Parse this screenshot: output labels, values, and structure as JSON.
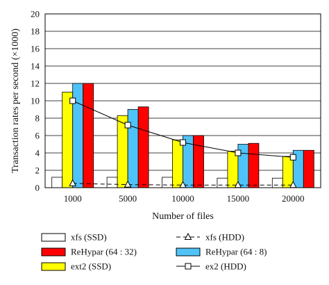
{
  "chart_data": {
    "type": "bar",
    "xlabel": "Number of files",
    "ylabel": "Transaction rates per second (×1000)",
    "ylim": [
      0,
      20
    ],
    "yticks": [
      "0",
      "2",
      "4",
      "6",
      "8",
      "10",
      "12",
      "14",
      "16",
      "18",
      "20"
    ],
    "categories": [
      "1000",
      "5000",
      "10000",
      "15000",
      "20000"
    ],
    "grid": true,
    "legend_position": "bottom",
    "series": [
      {
        "name": "xfs (SSD)",
        "kind": "bar",
        "color": "#ffffff",
        "values": [
          1.2,
          1.2,
          1.2,
          1.1,
          1.1
        ]
      },
      {
        "name": "ext2 (SSD)",
        "kind": "bar",
        "color": "#ffff00",
        "values": [
          11.0,
          8.3,
          5.5,
          4.2,
          3.6
        ]
      },
      {
        "name": "ReHypar (64 : 8)",
        "kind": "bar",
        "color": "#4fc3f7",
        "values": [
          12.0,
          9.0,
          6.0,
          5.0,
          4.3
        ]
      },
      {
        "name": "ReHypar (64 : 32)",
        "kind": "bar",
        "color": "#ff0000",
        "values": [
          12.0,
          9.3,
          6.0,
          5.1,
          4.3
        ]
      },
      {
        "name": "xfs (HDD)",
        "kind": "line",
        "marker": "triangle",
        "dash": true,
        "color": "#000000",
        "values": [
          0.5,
          0.35,
          0.3,
          0.3,
          0.3
        ]
      },
      {
        "name": "ex2 (HDD)",
        "kind": "line",
        "marker": "square",
        "dash": false,
        "color": "#000000",
        "values": [
          10.0,
          7.2,
          5.2,
          4.0,
          3.5
        ]
      }
    ],
    "legend_order": [
      0,
      4,
      3,
      2,
      1,
      5
    ]
  }
}
